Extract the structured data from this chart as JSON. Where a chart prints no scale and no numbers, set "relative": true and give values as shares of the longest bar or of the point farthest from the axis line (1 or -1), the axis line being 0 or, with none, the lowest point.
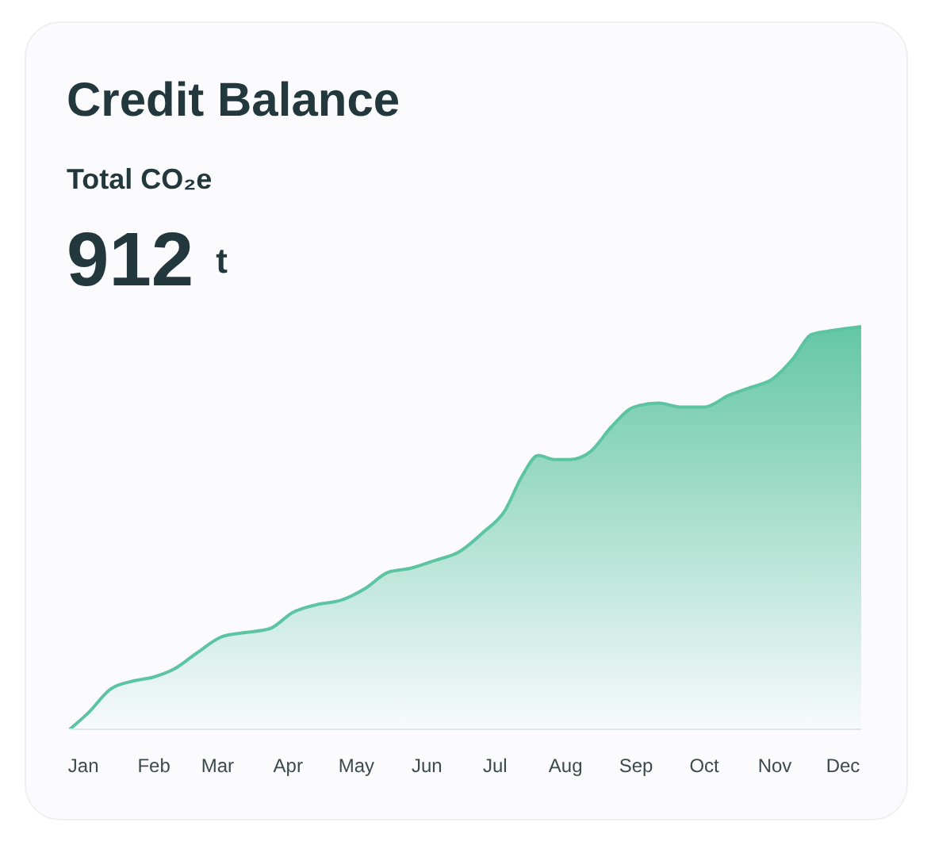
{
  "chart_data": {
    "type": "area",
    "title": "Credit Balance",
    "subtitle": "Total CO₂e",
    "annotations": [
      "912 t"
    ],
    "relative": true,
    "grid": false,
    "tick_labels": "x",
    "xlim": [
      "--01-09",
      "--12-23"
    ],
    "xticks": [
      {
        "value": "--01-15",
        "label": "Jan"
      },
      {
        "value": "--02-15",
        "label": "Feb"
      },
      {
        "value": "--03-15",
        "label": "Mar"
      },
      {
        "value": "--04-15",
        "label": "Apr"
      },
      {
        "value": "--05-15",
        "label": "May"
      },
      {
        "value": "--06-15",
        "label": "Jun"
      },
      {
        "value": "--07-15",
        "label": "Jul"
      },
      {
        "value": "--08-15",
        "label": "Aug"
      },
      {
        "value": "--09-15",
        "label": "Sep"
      },
      {
        "value": "--10-15",
        "label": "Oct"
      },
      {
        "value": "--11-15",
        "label": "Nov"
      },
      {
        "value": "--12-15",
        "label": "Dec"
      }
    ],
    "series": [
      {
        "color": "#5cc4a0",
        "x": [
          "--01-09",
          "--01-17",
          "--01-27",
          "--02-06",
          "--02-15",
          "--02-24",
          "--03-06",
          "--03-17",
          "--03-27",
          "--04-07",
          "--04-17",
          "--04-28",
          "--05-08",
          "--05-19",
          "--05-29",
          "--06-08",
          "--06-19",
          "--06-29",
          "--07-10",
          "--07-19",
          "--07-27",
          "--08-03",
          "--08-10",
          "--08-17",
          "--08-26",
          "--09-04",
          "--09-14",
          "--09-25",
          "--10-05",
          "--10-15",
          "--10-26",
          "--11-05",
          "--11-14",
          "--11-23",
          "--12-01",
          "--12-10",
          "--12-23"
        ],
        "values": [
          0,
          0.04,
          0.1,
          0.12,
          0.13,
          0.15,
          0.19,
          0.23,
          0.24,
          0.25,
          0.29,
          0.31,
          0.32,
          0.35,
          0.39,
          0.4,
          0.42,
          0.44,
          0.49,
          0.54,
          0.63,
          0.68,
          0.67,
          0.67,
          0.69,
          0.75,
          0.8,
          0.81,
          0.8,
          0.8,
          0.83,
          0.85,
          0.87,
          0.92,
          0.98,
          0.99,
          1
        ]
      }
    ]
  }
}
